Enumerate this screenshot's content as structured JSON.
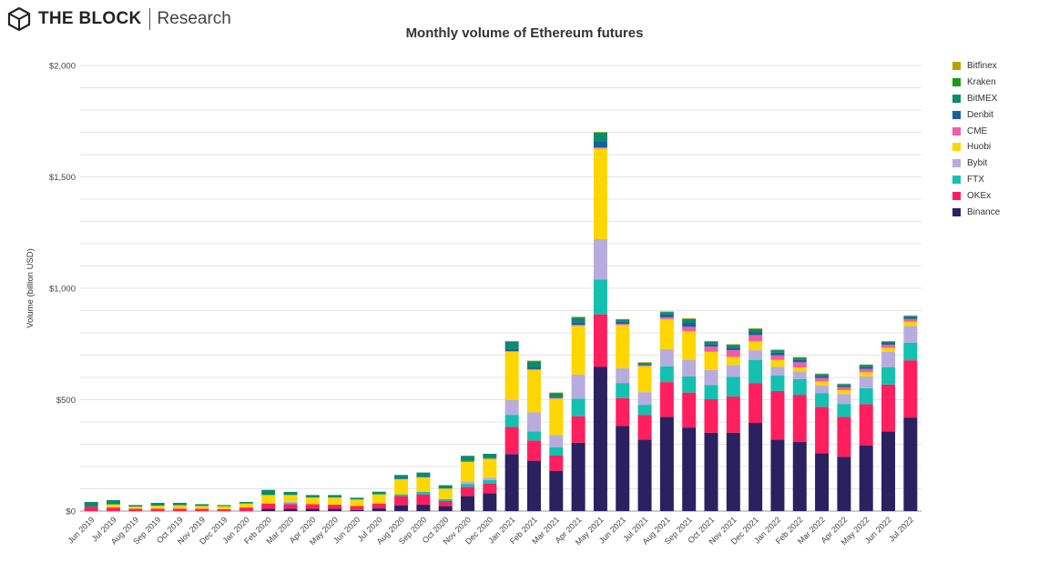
{
  "brand": {
    "name": "THE BLOCK",
    "sub": "Research"
  },
  "chart_data": {
    "type": "bar",
    "stacked": true,
    "title": "Monthly volume of Ethereum futures",
    "xlabel": "",
    "ylabel": "Volume (billion USD)",
    "ylim": [
      0,
      2000
    ],
    "yticks": [
      0,
      500,
      1000,
      1500,
      2000
    ],
    "ytick_labels": [
      "$0",
      "$500",
      "$1,000",
      "$1,500",
      "$2,000"
    ],
    "grid": true,
    "legend_position": "right",
    "categories": [
      "Jun 2019",
      "Jul 2019",
      "Aug 2019",
      "Sep 2019",
      "Oct 2019",
      "Nov 2019",
      "Dec 2019",
      "Jan 2020",
      "Feb 2020",
      "Mar 2020",
      "Apr 2020",
      "May 2020",
      "Jun 2020",
      "Jul 2020",
      "Aug 2020",
      "Sep 2020",
      "Oct 2020",
      "Nov 2020",
      "Dec 2020",
      "Jan 2021",
      "Feb 2021",
      "Mar 2021",
      "Apr 2021",
      "May 2021",
      "Jun 2021",
      "Jul 2021",
      "Aug 2021",
      "Sep 2021",
      "Oct 2021",
      "Nov 2021",
      "Dec 2021",
      "Jan 2022",
      "Feb 2022",
      "Mar 2022",
      "Apr 2022",
      "May 2022",
      "Jun 2022",
      "Jul 2022"
    ],
    "series": [
      {
        "name": "Binance",
        "color": "#2b2160",
        "values": [
          0,
          0,
          0,
          0,
          0,
          0,
          0,
          0,
          10,
          10,
          10,
          10,
          5,
          12,
          26,
          29,
          22,
          68,
          80,
          256,
          226,
          181,
          307,
          647,
          382,
          321,
          423,
          375,
          352,
          352,
          396,
          321,
          310,
          260,
          244,
          294,
          358,
          420
        ]
      },
      {
        "name": "OKEx",
        "color": "#ff1f5f",
        "values": [
          20,
          16,
          10,
          11,
          11,
          10,
          8,
          16,
          24,
          21,
          21,
          19,
          18,
          22,
          41,
          46,
          23,
          41,
          44,
          122,
          91,
          68,
          119,
          236,
          125,
          111,
          156,
          157,
          150,
          162,
          179,
          218,
          212,
          208,
          179,
          186,
          210,
          257
        ]
      },
      {
        "name": "FTX",
        "color": "#14c0b0",
        "values": [
          0,
          0,
          0,
          0,
          0,
          0,
          0,
          0,
          0,
          5,
          0,
          0,
          0,
          0,
          8,
          11,
          9,
          13,
          15,
          54,
          41,
          38,
          79,
          156,
          68,
          45,
          71,
          72,
          64,
          89,
          104,
          70,
          71,
          62,
          58,
          72,
          77,
          79
        ]
      },
      {
        "name": "Bybit",
        "color": "#b8acde",
        "values": [
          0,
          0,
          0,
          0,
          0,
          0,
          0,
          0,
          0,
          5,
          0,
          0,
          0,
          0,
          0,
          0,
          0,
          11,
          11,
          66,
          85,
          54,
          108,
          182,
          66,
          57,
          77,
          75,
          68,
          53,
          43,
          38,
          34,
          33,
          44,
          52,
          70,
          75
        ]
      },
      {
        "name": "Huobi",
        "color": "#ffd600",
        "values": [
          0,
          14,
          10,
          13,
          15,
          13,
          14,
          18,
          38,
          31,
          30,
          32,
          29,
          41,
          68,
          66,
          47,
          89,
          85,
          217,
          191,
          164,
          218,
          406,
          194,
          116,
          135,
          128,
          81,
          36,
          40,
          32,
          18,
          19,
          18,
          19,
          18,
          19
        ]
      },
      {
        "name": "CME",
        "color": "#f25ca8",
        "values": [
          0,
          0,
          0,
          0,
          0,
          0,
          0,
          0,
          0,
          0,
          0,
          0,
          0,
          0,
          0,
          0,
          0,
          0,
          0,
          3,
          3,
          2,
          5,
          5,
          5,
          4,
          8,
          20,
          23,
          30,
          28,
          20,
          23,
          15,
          13,
          15,
          14,
          12
        ]
      },
      {
        "name": "Deribit",
        "color": "#17609a",
        "values": [
          0,
          0,
          0,
          0,
          0,
          0,
          0,
          0,
          0,
          0,
          0,
          0,
          0,
          0,
          3,
          3,
          0,
          3,
          3,
          10,
          8,
          6,
          12,
          27,
          10,
          5,
          12,
          18,
          12,
          12,
          12,
          12,
          10,
          10,
          8,
          10,
          8,
          10
        ]
      },
      {
        "name": "BitMEX",
        "color": "#0b8a6e",
        "values": [
          21,
          19,
          7,
          13,
          11,
          8,
          5,
          7,
          23,
          14,
          11,
          11,
          8,
          12,
          16,
          18,
          15,
          23,
          19,
          32,
          27,
          16,
          21,
          39,
          9,
          6,
          11,
          17,
          10,
          12,
          15,
          11,
          10,
          7,
          5,
          7,
          5,
          3
        ]
      },
      {
        "name": "Kraken",
        "color": "#1a9a1a",
        "values": [
          0,
          0,
          0,
          0,
          0,
          0,
          0,
          0,
          0,
          0,
          0,
          0,
          0,
          0,
          0,
          0,
          0,
          0,
          0,
          2,
          2,
          2,
          2,
          2,
          2,
          2,
          2,
          2,
          2,
          2,
          2,
          2,
          2,
          2,
          2,
          2,
          2,
          2
        ]
      },
      {
        "name": "Bitfinex",
        "color": "#b5a300",
        "values": [
          0,
          0,
          0,
          0,
          0,
          0,
          0,
          0,
          0,
          0,
          0,
          0,
          0,
          0,
          0,
          0,
          0,
          0,
          0,
          1,
          1,
          1,
          1,
          1,
          1,
          1,
          1,
          1,
          1,
          1,
          1,
          1,
          1,
          1,
          1,
          1,
          1,
          1
        ]
      }
    ]
  }
}
